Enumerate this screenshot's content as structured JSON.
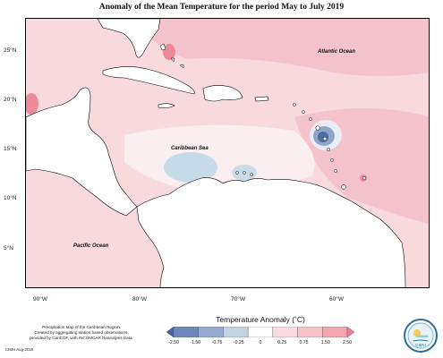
{
  "title": "Anomaly of the Mean Temperature for the period May to July 2019",
  "axes": {
    "latitude_labels": [
      "25°N",
      "20°N",
      "15°N",
      "10°N",
      "5°N"
    ],
    "longitude_labels": [
      "90°W",
      "80°W",
      "70°W",
      "60°W"
    ]
  },
  "ocean_labels": {
    "atlantic": "Atlantic Ocean",
    "caribbean": "Caribbean Sea",
    "pacific": "Pacific Ocean"
  },
  "legend": {
    "title": "Temperature Anomaly (˚C)",
    "ticks": [
      "-2.50",
      "-1.50",
      "-0.75",
      "-0.25",
      "0",
      "0.25",
      "0.75",
      "1.50",
      "2.50"
    ],
    "colors": [
      "#4a62a8",
      "#6f86bd",
      "#97aad1",
      "#c3d3e2",
      "#ffffff",
      "#fbdde1",
      "#f6c3ca",
      "#f2a6b0",
      "#ec7f8e"
    ]
  },
  "footer": {
    "lines": [
      "Precipitation Map of the Caribbean Region.",
      "Created by aggregating station based observations,",
      "provided by CariCOF, with INCOMCAR Reanalysis Data."
    ],
    "credit": "CIMH Aug-2019"
  },
  "logo": {
    "text": "CIMH",
    "icon": "cimh-logo-icon"
  },
  "colors": {
    "land_white": "#ffffff",
    "sea_base": "#f8dde1",
    "warm": "#f4c1c9",
    "warmer": "#ef9ea9",
    "cool": "#c6d9e6",
    "cold": "#4d6aa5",
    "coast": "#000000"
  }
}
